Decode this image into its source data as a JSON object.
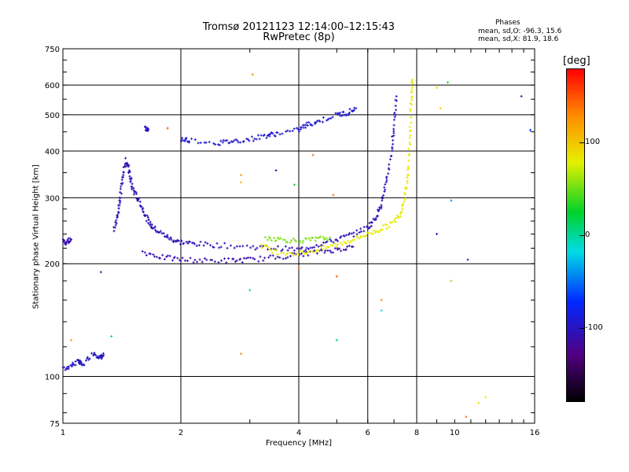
{
  "title_line1": "Tromsø 20121123 12:14:00–12:15:43",
  "title_line2": "RwPretec (8p)",
  "phases": {
    "title": "Phases",
    "o_line": "mean, sd,O: -96.3, 15.6",
    "x_line": "mean, sd,X: 81.9, 18.6"
  },
  "colorbar": {
    "unit": "[deg]",
    "range": [
      -180,
      180
    ],
    "ticks": [
      {
        "value": 100,
        "label": "100"
      },
      {
        "value": 0,
        "label": "0"
      },
      {
        "value": -100,
        "label": "-100"
      }
    ]
  },
  "chart_data": {
    "type": "scatter",
    "xlabel": "Frequency [MHz]",
    "ylabel": "Stationary phase Virtual Height [km]",
    "x_scale": "log",
    "y_scale": "log",
    "xlim": [
      1,
      16
    ],
    "ylim": [
      75,
      750
    ],
    "x_ticks": [
      {
        "value": 1,
        "label": "1"
      },
      {
        "value": 2,
        "label": "2"
      },
      {
        "value": 4,
        "label": "4"
      },
      {
        "value": 6,
        "label": "6"
      },
      {
        "value": 8,
        "label": "8"
      },
      {
        "value": 10,
        "label": "10"
      },
      {
        "value": 16,
        "label": "16"
      }
    ],
    "y_ticks": [
      {
        "value": 75,
        "label": "75"
      },
      {
        "value": 100,
        "label": "100"
      },
      {
        "value": 200,
        "label": "200"
      },
      {
        "value": 300,
        "label": "300"
      },
      {
        "value": 400,
        "label": "400"
      },
      {
        "value": 500,
        "label": "500"
      },
      {
        "value": 600,
        "label": "600"
      },
      {
        "value": 750,
        "label": "750"
      }
    ],
    "gridlines_x": [
      2,
      4,
      6,
      8
    ],
    "gridlines_y": [
      100,
      200,
      300,
      400,
      500,
      600
    ],
    "grid": true,
    "color_encoding": "phase [deg]",
    "traces": [
      {
        "points": [
          [
            1.0,
            230
          ],
          [
            1.02,
            228
          ],
          [
            1.05,
            232
          ]
        ],
        "phase": -110
      },
      {
        "points": [
          [
            1.0,
            104
          ],
          [
            1.05,
            107
          ],
          [
            1.1,
            110
          ],
          [
            1.12,
            107
          ],
          [
            1.2,
            116
          ],
          [
            1.25,
            112
          ],
          [
            1.27,
            114
          ]
        ],
        "phase": -100
      },
      {
        "points": [
          [
            1.35,
            245
          ],
          [
            1.38,
            270
          ],
          [
            1.4,
            300
          ],
          [
            1.42,
            340
          ],
          [
            1.45,
            380
          ],
          [
            1.48,
            350
          ],
          [
            1.5,
            320
          ],
          [
            1.55,
            300
          ],
          [
            1.6,
            280
          ],
          [
            1.65,
            260
          ],
          [
            1.7,
            250
          ],
          [
            1.8,
            240
          ],
          [
            1.9,
            232
          ],
          [
            2.0,
            228
          ],
          [
            2.2,
            226
          ],
          [
            2.5,
            224
          ],
          [
            3.0,
            222
          ],
          [
            3.5,
            220
          ],
          [
            4.0,
            218
          ],
          [
            4.5,
            225
          ],
          [
            5.0,
            232
          ],
          [
            5.5,
            240
          ],
          [
            6.0,
            250
          ],
          [
            6.3,
            265
          ],
          [
            6.5,
            290
          ],
          [
            6.7,
            330
          ],
          [
            6.9,
            400
          ],
          [
            7.0,
            470
          ],
          [
            7.1,
            560
          ]
        ],
        "phase": -105
      },
      {
        "points": [
          [
            1.6,
            215
          ],
          [
            1.8,
            208
          ],
          [
            2.0,
            205
          ],
          [
            2.3,
            204
          ],
          [
            2.7,
            204
          ],
          [
            3.0,
            205
          ],
          [
            3.5,
            208
          ],
          [
            4.0,
            212
          ],
          [
            4.5,
            215
          ],
          [
            5.0,
            218
          ],
          [
            5.5,
            222
          ]
        ],
        "phase": -110
      },
      {
        "points": [
          [
            1.62,
            460
          ],
          [
            1.65,
            455
          ]
        ],
        "phase": -100
      },
      {
        "points": [
          [
            2.0,
            430
          ],
          [
            2.1,
            428
          ],
          [
            2.5,
            420
          ],
          [
            2.7,
            425
          ],
          [
            3.0,
            430
          ],
          [
            3.3,
            440
          ],
          [
            3.5,
            445
          ],
          [
            4.0,
            455
          ],
          [
            4.2,
            470
          ],
          [
            4.5,
            480
          ],
          [
            5.0,
            500
          ],
          [
            5.3,
            505
          ],
          [
            5.6,
            520
          ]
        ],
        "phase": -95
      },
      {
        "points": [
          [
            3.2,
            225
          ],
          [
            3.5,
            215
          ],
          [
            4.0,
            213
          ],
          [
            4.5,
            218
          ],
          [
            5.0,
            225
          ],
          [
            5.5,
            232
          ],
          [
            6.0,
            240
          ],
          [
            6.5,
            248
          ],
          [
            7.0,
            258
          ],
          [
            7.3,
            275
          ],
          [
            7.5,
            310
          ],
          [
            7.6,
            360
          ],
          [
            7.7,
            450
          ],
          [
            7.75,
            550
          ],
          [
            7.8,
            620
          ]
        ],
        "phase": 82
      },
      {
        "points": [
          [
            3.3,
            235
          ],
          [
            3.6,
            232
          ],
          [
            4.0,
            230
          ],
          [
            4.4,
            232
          ],
          [
            4.8,
            235
          ]
        ],
        "phase": 55
      }
    ],
    "scattered_points": [
      {
        "x": 1.05,
        "y": 125,
        "phase": 120
      },
      {
        "x": 1.25,
        "y": 190,
        "phase": -115
      },
      {
        "x": 1.33,
        "y": 128,
        "phase": 10
      },
      {
        "x": 1.85,
        "y": 460,
        "phase": 150
      },
      {
        "x": 3.05,
        "y": 640,
        "phase": 130
      },
      {
        "x": 2.85,
        "y": 345,
        "phase": 120
      },
      {
        "x": 2.85,
        "y": 330,
        "phase": 110
      },
      {
        "x": 2.85,
        "y": 115,
        "phase": 130
      },
      {
        "x": 3.0,
        "y": 170,
        "phase": 0
      },
      {
        "x": 3.5,
        "y": 355,
        "phase": -110
      },
      {
        "x": 3.9,
        "y": 325,
        "phase": 30
      },
      {
        "x": 4.0,
        "y": 195,
        "phase": 150
      },
      {
        "x": 4.35,
        "y": 390,
        "phase": 140
      },
      {
        "x": 4.9,
        "y": 305,
        "phase": 140
      },
      {
        "x": 5.0,
        "y": 185,
        "phase": 150
      },
      {
        "x": 5.0,
        "y": 125,
        "phase": 10
      },
      {
        "x": 6.5,
        "y": 160,
        "phase": 130
      },
      {
        "x": 6.5,
        "y": 150,
        "phase": -20
      },
      {
        "x": 9.0,
        "y": 590,
        "phase": 90
      },
      {
        "x": 9.2,
        "y": 520,
        "phase": 100
      },
      {
        "x": 9.6,
        "y": 610,
        "phase": 30
      },
      {
        "x": 9.8,
        "y": 295,
        "phase": -40
      },
      {
        "x": 9.8,
        "y": 180,
        "phase": 60
      },
      {
        "x": 9.0,
        "y": 240,
        "phase": -90
      },
      {
        "x": 10.8,
        "y": 205,
        "phase": -110
      },
      {
        "x": 10.7,
        "y": 78,
        "phase": 140
      },
      {
        "x": 11.5,
        "y": 85,
        "phase": 90
      },
      {
        "x": 12.0,
        "y": 88,
        "phase": 80
      },
      {
        "x": 14.8,
        "y": 560,
        "phase": -100
      },
      {
        "x": 15.6,
        "y": 455,
        "phase": -70
      }
    ]
  }
}
